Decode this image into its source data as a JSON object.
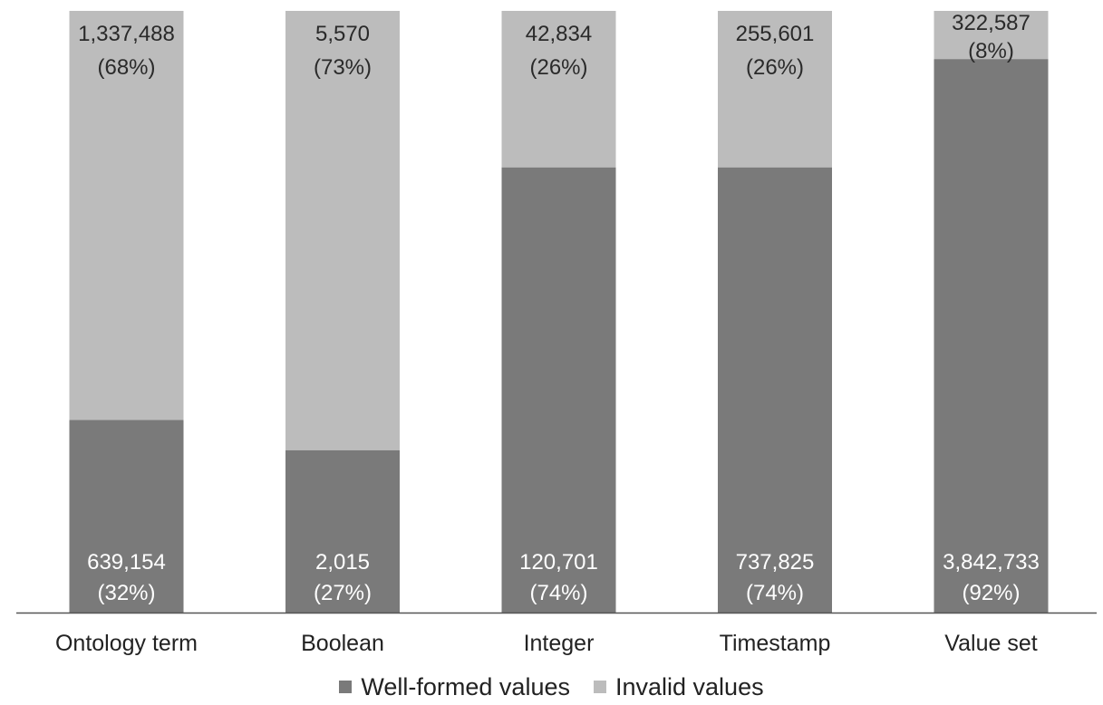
{
  "chart_data": {
    "type": "bar",
    "stacked": "percent",
    "categories": [
      "Ontology term",
      "Boolean",
      "Integer",
      "Timestamp",
      "Value set"
    ],
    "series": [
      {
        "name": "Well-formed values",
        "color": "#7a7a7a",
        "values": [
          639154,
          2015,
          120701,
          737825,
          3842733
        ],
        "percent": [
          32,
          27,
          74,
          74,
          92
        ],
        "labels": [
          [
            "639,154",
            "(32%)"
          ],
          [
            "2,015",
            "(27%)"
          ],
          [
            "120,701",
            "(74%)"
          ],
          [
            "737,825",
            "(74%)"
          ],
          [
            "3,842,733",
            "(92%)"
          ]
        ]
      },
      {
        "name": "Invalid values",
        "color": "#bcbcbc",
        "values": [
          1337488,
          5570,
          42834,
          255601,
          322587
        ],
        "percent": [
          68,
          73,
          26,
          26,
          8
        ],
        "labels": [
          [
            "1,337,488",
            "(68%)"
          ],
          [
            "5,570",
            "(73%)"
          ],
          [
            "42,834",
            "(26%)"
          ],
          [
            "255,601",
            "(26%)"
          ],
          [
            "322,587",
            "(8%)"
          ]
        ]
      }
    ],
    "ylim": [
      0,
      100
    ],
    "grid": false,
    "legend_position": "bottom",
    "title": "",
    "xlabel": "",
    "ylabel": ""
  }
}
